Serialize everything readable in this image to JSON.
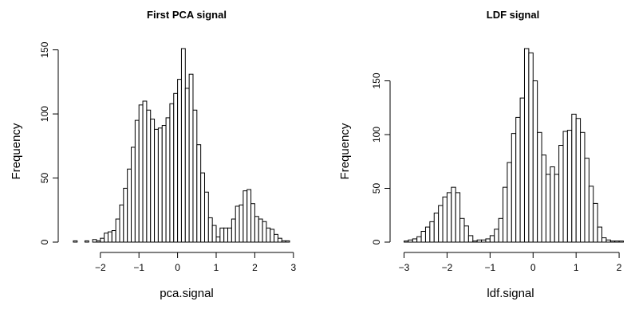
{
  "chart_data": [
    {
      "type": "bar",
      "title": "First PCA signal",
      "xlabel": "pca.signal",
      "ylabel": "Frequency",
      "bin_width": 0.1,
      "first_bin_start": -2.7,
      "values": [
        1,
        0,
        0,
        1,
        0,
        2,
        1,
        3,
        7,
        8,
        9,
        18,
        29,
        42,
        57,
        74,
        95,
        107,
        110,
        103,
        96,
        88,
        89,
        91,
        97,
        108,
        116,
        127,
        151,
        120,
        131,
        103,
        76,
        54,
        39,
        19,
        13,
        4,
        11,
        11,
        11,
        18,
        28,
        29,
        40,
        41,
        30,
        20,
        18,
        16,
        11,
        10,
        6,
        3,
        1,
        1
      ],
      "xticks": [
        -2,
        -1,
        0,
        1,
        2,
        3
      ],
      "yticks": [
        0,
        50,
        100,
        150
      ],
      "xlim": [
        -2.75,
        3.2
      ],
      "ylim": [
        0,
        151
      ]
    },
    {
      "type": "bar",
      "title": "LDF signal",
      "xlabel": "ldf.signal",
      "ylabel": "Frequency",
      "bin_width": 0.1,
      "first_bin_start": -3.0,
      "values": [
        1,
        2,
        3,
        5,
        10,
        14,
        19,
        27,
        34,
        42,
        46,
        51,
        46,
        22,
        15,
        6,
        1,
        2,
        2,
        3,
        6,
        12,
        22,
        51,
        74,
        101,
        116,
        134,
        180,
        176,
        150,
        102,
        81,
        63,
        70,
        63,
        90,
        103,
        104,
        119,
        115,
        102,
        78,
        52,
        36,
        14,
        4,
        2,
        1,
        1,
        1
      ],
      "xticks": [
        -3,
        -2,
        -1,
        0,
        1,
        2
      ],
      "yticks": [
        0,
        50,
        100,
        150
      ],
      "xlim": [
        -3.0,
        2.1
      ],
      "ylim": [
        0,
        180
      ]
    }
  ]
}
